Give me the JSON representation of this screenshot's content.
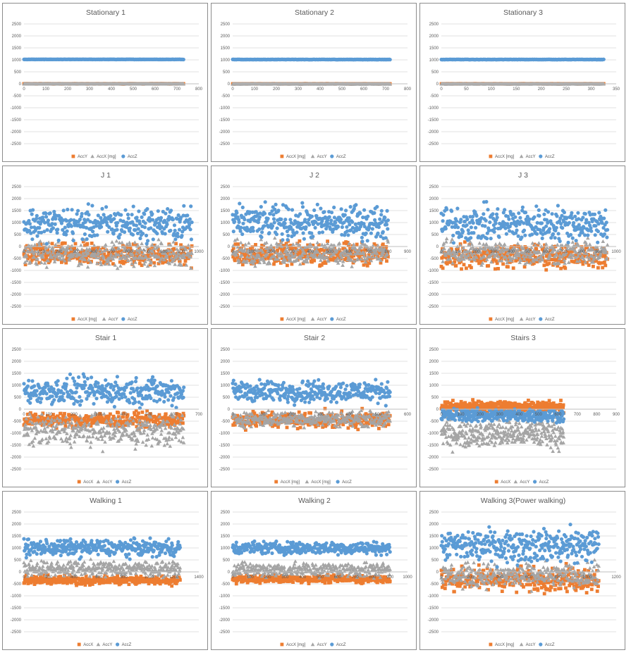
{
  "colors": {
    "AccX": "#ED7D31",
    "AccY": "#A5A5A5",
    "AccZ": "#5B9BD5",
    "grid": "#D9D9D9",
    "axis": "#BFBFBF"
  },
  "chart_data": [
    {
      "type": "scatter",
      "title": "Stationary 1",
      "ylim": [
        -2500,
        2500
      ],
      "yticks": [
        -2500,
        -2000,
        -1500,
        -1000,
        -500,
        0,
        500,
        1000,
        1500,
        2000,
        2500
      ],
      "xlim": [
        0,
        800
      ],
      "xticks": [
        0,
        100,
        200,
        300,
        400,
        500,
        600,
        700,
        800
      ],
      "n": 730,
      "legend": [
        "AccY",
        "AccX [mg]",
        "AccZ"
      ],
      "series": [
        {
          "name": "AccY",
          "color": "AccX",
          "marker": "square",
          "base": 0,
          "noise": 6
        },
        {
          "name": "AccX [mg]",
          "color": "AccY",
          "marker": "triangle",
          "base": 0,
          "noise": 4
        },
        {
          "name": "AccZ",
          "color": "AccZ",
          "marker": "circle",
          "base": 1020,
          "noise": 5
        }
      ]
    },
    {
      "type": "scatter",
      "title": "Stationary 2",
      "ylim": [
        -2500,
        2500
      ],
      "yticks": [
        -2500,
        -2000,
        -1500,
        -1000,
        -500,
        0,
        500,
        1000,
        1500,
        2000,
        2500
      ],
      "xlim": [
        0,
        800
      ],
      "xticks": [
        0,
        100,
        200,
        300,
        400,
        500,
        600,
        700,
        800
      ],
      "n": 720,
      "legend": [
        "AccX [mg]",
        "AccY",
        "AccZ"
      ],
      "series": [
        {
          "name": "AccX [mg]",
          "color": "AccX",
          "marker": "square",
          "base": 0,
          "noise": 5
        },
        {
          "name": "AccY",
          "color": "AccY",
          "marker": "triangle",
          "base": -5,
          "noise": 4
        },
        {
          "name": "AccZ",
          "color": "AccZ",
          "marker": "circle",
          "base": 1015,
          "noise": 5
        }
      ]
    },
    {
      "type": "scatter",
      "title": "Stationary 3",
      "ylim": [
        -2500,
        2500
      ],
      "yticks": [
        -2500,
        -2000,
        -1500,
        -1000,
        -500,
        0,
        500,
        1000,
        1500,
        2000,
        2500
      ],
      "xlim": [
        0,
        350
      ],
      "xticks": [
        0,
        50,
        100,
        150,
        200,
        250,
        300,
        350
      ],
      "n": 325,
      "legend": [
        "AccX [mg]",
        "AccY",
        "AccZ"
      ],
      "series": [
        {
          "name": "AccX [mg]",
          "color": "AccX",
          "marker": "square",
          "base": 0,
          "noise": 5
        },
        {
          "name": "AccY",
          "color": "AccY",
          "marker": "triangle",
          "base": -5,
          "noise": 4
        },
        {
          "name": "AccZ",
          "color": "AccZ",
          "marker": "circle",
          "base": 1015,
          "noise": 5
        }
      ]
    },
    {
      "type": "scatter",
      "title": "J 1",
      "ylim": [
        -2500,
        2500
      ],
      "yticks": [
        -2500,
        -2000,
        -1500,
        -1000,
        -500,
        0,
        500,
        1000,
        1500,
        2000,
        2500
      ],
      "xlim": [
        0,
        1000
      ],
      "xticks": [
        0,
        100,
        200,
        300,
        400,
        500,
        600,
        700,
        800,
        900,
        1000
      ],
      "n": 960,
      "legend": [
        "AccX [mg]",
        "AccY",
        "AccZ"
      ],
      "series": [
        {
          "name": "AccX [mg]",
          "color": "AccX",
          "marker": "square",
          "base": -350,
          "noise": 600
        },
        {
          "name": "AccY",
          "color": "AccY",
          "marker": "triangle",
          "base": -300,
          "noise": 650
        },
        {
          "name": "AccZ",
          "color": "AccZ",
          "marker": "circle",
          "base": 950,
          "noise": 900
        }
      ]
    },
    {
      "type": "scatter",
      "title": "J 2",
      "ylim": [
        -2500,
        2500
      ],
      "yticks": [
        -2500,
        -2000,
        -1500,
        -1000,
        -500,
        0,
        500,
        1000,
        1500,
        2000,
        2500
      ],
      "xlim": [
        0,
        900
      ],
      "xticks": [
        0,
        100,
        200,
        300,
        400,
        500,
        600,
        700,
        800,
        900
      ],
      "n": 800,
      "legend": [
        "AccX [mg]",
        "AccY",
        "AccZ"
      ],
      "series": [
        {
          "name": "AccX [mg]",
          "color": "AccX",
          "marker": "square",
          "base": -300,
          "noise": 600
        },
        {
          "name": "AccY",
          "color": "AccY",
          "marker": "triangle",
          "base": -250,
          "noise": 650
        },
        {
          "name": "AccZ",
          "color": "AccZ",
          "marker": "circle",
          "base": 1000,
          "noise": 900
        }
      ]
    },
    {
      "type": "scatter",
      "title": "J 3",
      "ylim": [
        -2500,
        2500
      ],
      "yticks": [
        -2500,
        -2000,
        -1500,
        -1000,
        -500,
        0,
        500,
        1000,
        1500,
        2000,
        2500
      ],
      "xlim": [
        0,
        1000
      ],
      "xticks": [
        0,
        100,
        200,
        300,
        400,
        500,
        600,
        700,
        800,
        900,
        1000
      ],
      "n": 950,
      "legend": [
        "AccX [mg]",
        "AccY",
        "AccZ"
      ],
      "series": [
        {
          "name": "AccX [mg]",
          "color": "AccX",
          "marker": "square",
          "base": -400,
          "noise": 650
        },
        {
          "name": "AccY",
          "color": "AccY",
          "marker": "triangle",
          "base": -250,
          "noise": 650
        },
        {
          "name": "AccZ",
          "color": "AccZ",
          "marker": "circle",
          "base": 950,
          "noise": 950
        }
      ]
    },
    {
      "type": "scatter",
      "title": "Stair 1",
      "ylim": [
        -2500,
        2500
      ],
      "yticks": [
        -2500,
        -2000,
        -1500,
        -1000,
        -500,
        0,
        500,
        1000,
        1500,
        2000,
        2500
      ],
      "xlim": [
        0,
        700
      ],
      "xticks": [
        0,
        100,
        200,
        300,
        400,
        500,
        600,
        700
      ],
      "n": 640,
      "legend": [
        "AccX",
        "AccY",
        "AccZ"
      ],
      "series": [
        {
          "name": "AccX",
          "color": "AccX",
          "marker": "square",
          "base": -450,
          "noise": 400
        },
        {
          "name": "AccY",
          "color": "AccY",
          "marker": "triangle",
          "base": -900,
          "noise": 850
        },
        {
          "name": "AccZ",
          "color": "AccZ",
          "marker": "circle",
          "base": 750,
          "noise": 750
        }
      ]
    },
    {
      "type": "scatter",
      "title": "Stair 2",
      "ylim": [
        -2500,
        2500
      ],
      "yticks": [
        -2500,
        -2000,
        -1500,
        -1000,
        -500,
        0,
        500,
        1000,
        1500,
        2000,
        2500
      ],
      "xlim": [
        0,
        600
      ],
      "xticks": [
        0,
        100,
        200,
        300,
        400,
        500,
        600
      ],
      "n": 540,
      "legend": [
        "AccX [mg]",
        "AccX [mg]",
        "AccZ"
      ],
      "series": [
        {
          "name": "AccX [mg]",
          "color": "AccX",
          "marker": "square",
          "base": -450,
          "noise": 450
        },
        {
          "name": "AccX [mg]",
          "color": "AccY",
          "marker": "triangle",
          "base": -400,
          "noise": 400
        },
        {
          "name": "AccZ",
          "color": "AccZ",
          "marker": "circle",
          "base": 750,
          "noise": 600
        }
      ]
    },
    {
      "type": "scatter",
      "title": "Stairs 3",
      "ylim": [
        -2500,
        2500
      ],
      "yticks": [
        -2500,
        -2000,
        -1500,
        -1000,
        -500,
        0,
        500,
        1000,
        1500,
        2000,
        2500
      ],
      "xlim": [
        0,
        900
      ],
      "xticks": [
        0,
        100,
        200,
        300,
        400,
        500,
        600,
        700,
        800,
        900
      ],
      "n": 630,
      "legend": [
        "AccX",
        "AccY",
        "AccZ"
      ],
      "series": [
        {
          "name": "AccX",
          "color": "AccX",
          "marker": "square",
          "base": 100,
          "noise": 300
        },
        {
          "name": "AccY",
          "color": "AccY",
          "marker": "triangle",
          "base": -1000,
          "noise": 800
        },
        {
          "name": "AccZ",
          "color": "AccZ",
          "marker": "circle",
          "base": -250,
          "noise": 350
        }
      ]
    },
    {
      "type": "scatter",
      "title": "Walking 1",
      "ylim": [
        -2500,
        2500
      ],
      "yticks": [
        -2500,
        -2000,
        -1500,
        -1000,
        -500,
        0,
        500,
        1000,
        1500,
        2000,
        2500
      ],
      "xlim": [
        0,
        1400
      ],
      "xticks": [
        0,
        200,
        400,
        600,
        800,
        1000,
        1200,
        1400
      ],
      "n": 1250,
      "legend": [
        "AccX",
        "AccY",
        "AccZ"
      ],
      "series": [
        {
          "name": "AccX",
          "color": "AccX",
          "marker": "square",
          "base": -350,
          "noise": 250
        },
        {
          "name": "AccY",
          "color": "AccY",
          "marker": "triangle",
          "base": 150,
          "noise": 400
        },
        {
          "name": "AccZ",
          "color": "AccZ",
          "marker": "circle",
          "base": 1000,
          "noise": 450
        }
      ]
    },
    {
      "type": "scatter",
      "title": "Walking 2",
      "ylim": [
        -2500,
        2500
      ],
      "yticks": [
        -2500,
        -2000,
        -1500,
        -1000,
        -500,
        0,
        500,
        1000,
        1500,
        2000,
        2500
      ],
      "xlim": [
        0,
        1000
      ],
      "xticks": [
        0,
        100,
        200,
        300,
        400,
        500,
        600,
        700,
        800,
        900,
        1000
      ],
      "n": 900,
      "legend": [
        "AccX [mg]",
        "AccY",
        "AccZ"
      ],
      "series": [
        {
          "name": "AccX [mg]",
          "color": "AccX",
          "marker": "square",
          "base": -300,
          "noise": 200
        },
        {
          "name": "AccY",
          "color": "AccY",
          "marker": "triangle",
          "base": 100,
          "noise": 400
        },
        {
          "name": "AccZ",
          "color": "AccZ",
          "marker": "circle",
          "base": 1000,
          "noise": 350
        }
      ]
    },
    {
      "type": "scatter",
      "title": "Walking 3(Power walking)",
      "ylim": [
        -2500,
        2500
      ],
      "yticks": [
        -2500,
        -2000,
        -1500,
        -1000,
        -500,
        0,
        500,
        1000,
        1500,
        2000,
        2500
      ],
      "xlim": [
        0,
        1200
      ],
      "xticks": [
        0,
        200,
        400,
        600,
        800,
        1000,
        1200
      ],
      "n": 1080,
      "legend": [
        "AccX [mg]",
        "AccY",
        "AccZ"
      ],
      "series": [
        {
          "name": "AccX [mg]",
          "color": "AccX",
          "marker": "square",
          "base": -300,
          "noise": 650
        },
        {
          "name": "AccY",
          "color": "AccY",
          "marker": "triangle",
          "base": -150,
          "noise": 650
        },
        {
          "name": "AccZ",
          "color": "AccZ",
          "marker": "circle",
          "base": 1100,
          "noise": 900,
          "clip": 1980
        }
      ]
    }
  ]
}
